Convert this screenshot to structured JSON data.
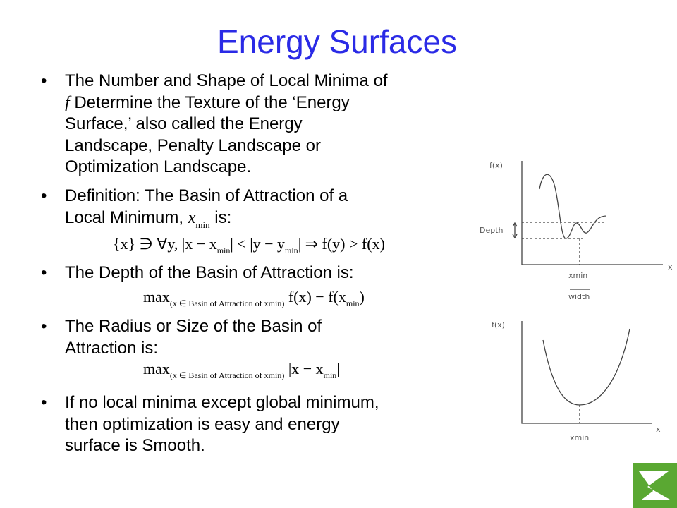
{
  "title": "Energy Surfaces",
  "bullets": [
    {
      "lines": [
        [
          "The Number and Shape of Local Minima of"
        ],
        [
          "f",
          "Determine the Texture of the ‘Energy"
        ],
        [
          "Surface,’ also called the Energy"
        ],
        [
          "Landscape, Penalty Landscape or"
        ],
        [
          "Optimization Landscape."
        ]
      ]
    },
    {
      "lines": [
        [
          "Definition: The Basin of Attraction of a"
        ],
        [
          "Local Minimum,",
          "x",
          "min",
          "is:"
        ]
      ],
      "equation": [
        "{x} ∋ ∀y, |x − x",
        "min",
        "| < |y − y",
        "min",
        "| ⇒ f(y) > f(x)"
      ]
    },
    {
      "lines": [
        [
          "The Depth of the Basin of Attraction is:"
        ]
      ],
      "equation": [
        "max",
        "(x ∈ Basin of Attraction of xmin)",
        " f(x) − f(x",
        "min",
        ")"
      ]
    },
    {
      "lines": [
        [
          "The Radius or Size of the Basin of"
        ],
        [
          "Attraction is:"
        ]
      ],
      "equation": [
        "max",
        "(x ∈ Basin of Attraction of xmin)",
        " |x − x",
        "min",
        "|"
      ]
    },
    {
      "lines": [
        [
          "If no local minima except global minimum,"
        ],
        [
          "then optimization is easy and energy"
        ],
        [
          "surface is Smooth."
        ]
      ]
    }
  ],
  "sketch_top": {
    "y_label": "f(x)",
    "depth_label": "Depth",
    "x_min_label": "xmin",
    "width_label": "width",
    "x_label": "x"
  },
  "sketch_bottom": {
    "y_label": "f(x)",
    "x_min_label": "xmin",
    "x_label": "x"
  }
}
